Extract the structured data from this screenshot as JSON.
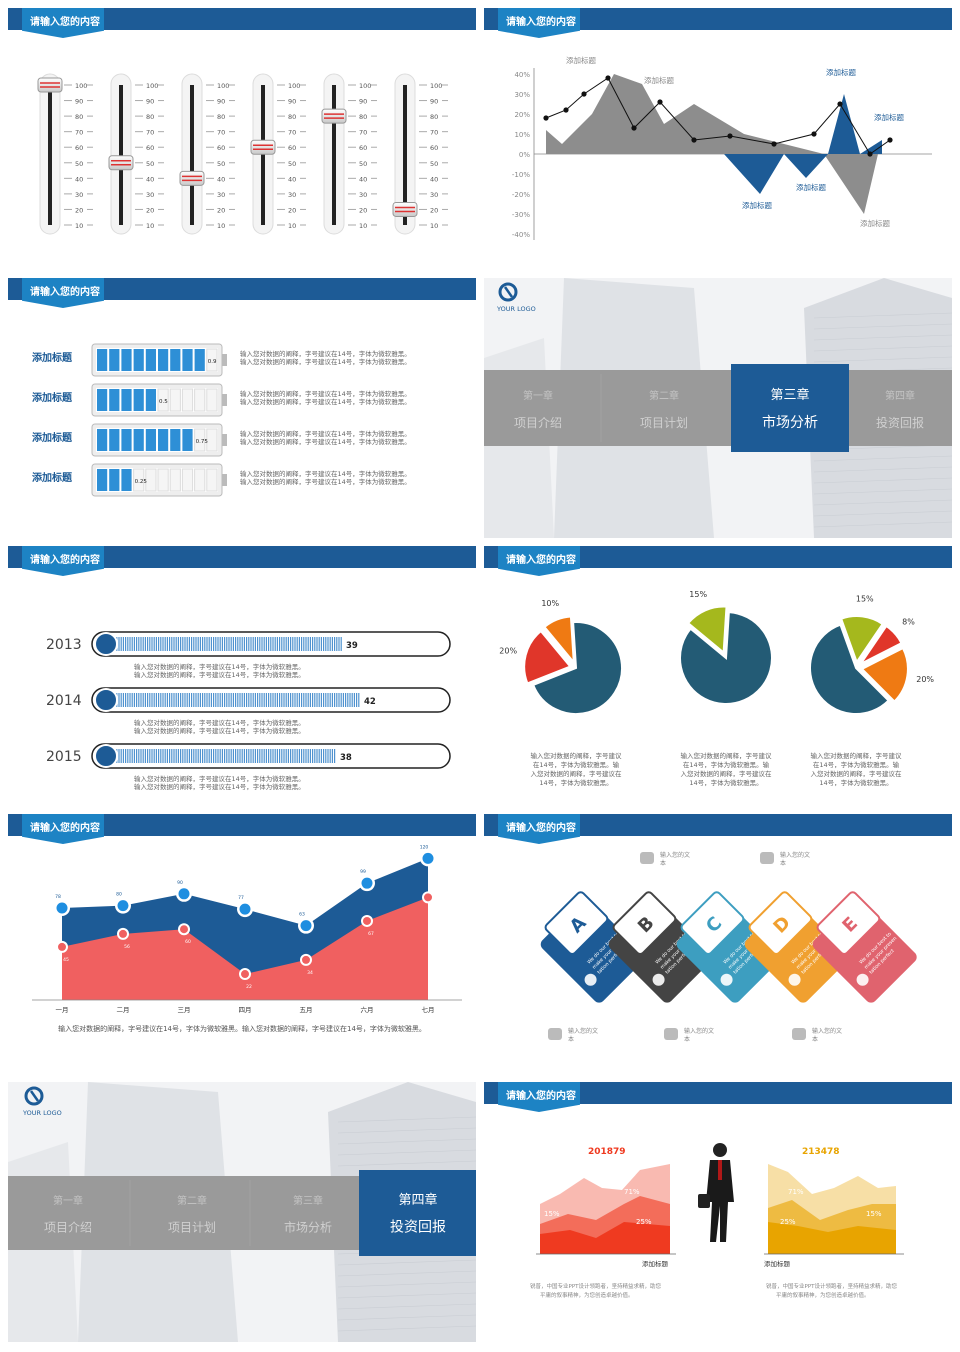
{
  "header_title": "请输入您的内容",
  "sliders": {
    "ticks": [
      "100",
      "90",
      "80",
      "70",
      "60",
      "50",
      "40",
      "30",
      "20",
      "10"
    ],
    "values": [
      100,
      50,
      40,
      60,
      80,
      20
    ]
  },
  "area_pos_neg": {
    "chart_data": {
      "type": "area",
      "y_ticks": [
        "40%",
        "30%",
        "20%",
        "10%",
        "0%",
        "-10%",
        "-20%",
        "-30%",
        "-40%"
      ],
      "ylim": [
        -40,
        40
      ],
      "annotations": [
        "添加标题",
        "添加标题",
        "添加标题",
        "添加标题",
        "添加标题",
        "添加标题",
        "添加标题"
      ],
      "gray_area": [
        12,
        5,
        20,
        40,
        35,
        15,
        25,
        10,
        5,
        0,
        -30
      ],
      "blue_area": [
        0,
        -20,
        0,
        -12,
        0,
        30,
        0,
        7
      ],
      "line": [
        18,
        22,
        30,
        38,
        13,
        26,
        7,
        9,
        5,
        10,
        25,
        0,
        7
      ]
    }
  },
  "batteries": {
    "items": [
      {
        "label": "添加标题",
        "value": 0.9,
        "value_text": "0.9"
      },
      {
        "label": "添加标题",
        "value": 0.5,
        "value_text": "0.5"
      },
      {
        "label": "添加标题",
        "value": 0.75,
        "value_text": "0.75"
      },
      {
        "label": "添加标题",
        "value": 0.25,
        "value_text": "0.25"
      }
    ],
    "desc_line": "输入您对数据的阐释，字号建议在14号，字体为微软雅黑。"
  },
  "chapter3": {
    "logo": "YOUR LOGO",
    "tabs": [
      {
        "num": "第一章",
        "title": "项目介绍"
      },
      {
        "num": "第二章",
        "title": "项目计划"
      },
      {
        "num": "第三章",
        "title": "市场分析"
      },
      {
        "num": "第四章",
        "title": "投资回报"
      }
    ]
  },
  "progress": {
    "items": [
      {
        "year": "2013",
        "value": 39,
        "value_text": "39"
      },
      {
        "year": "2014",
        "value": 42,
        "value_text": "42"
      },
      {
        "year": "2015",
        "value": 38,
        "value_text": "38"
      }
    ],
    "desc_line": "输入您对数据的阐释，字号建议在14号，字体为微软雅黑。"
  },
  "pies": {
    "chart_data": [
      {
        "type": "pie",
        "slices": [
          {
            "label": "20%",
            "value": 20,
            "color": "#e0362a"
          },
          {
            "label": "10%",
            "value": 10,
            "color": "#ef7a13"
          },
          {
            "label": "",
            "value": 70,
            "color": "#235b75"
          }
        ]
      },
      {
        "type": "pie",
        "slices": [
          {
            "label": "15%",
            "value": 15,
            "color": "#a5b81d"
          },
          {
            "label": "",
            "value": 85,
            "color": "#235b75"
          }
        ]
      },
      {
        "type": "pie",
        "slices": [
          {
            "label": "15%",
            "value": 15,
            "color": "#a5b81d"
          },
          {
            "label": "8%",
            "value": 8,
            "color": "#e0362a"
          },
          {
            "label": "20%",
            "value": 20,
            "color": "#ef7a13"
          },
          {
            "label": "",
            "value": 57,
            "color": "#235b75"
          }
        ]
      }
    ],
    "desc": "输入您对数据的阐释，字号建议在14号，字体为微软雅黑。输入您对数据的阐释，字号建议在14号，字体为微软雅黑。"
  },
  "area_months": {
    "chart_data": {
      "type": "area",
      "categories": [
        "一月",
        "二月",
        "三月",
        "四月",
        "五月",
        "六月",
        "七月"
      ],
      "series": [
        {
          "values": [
            78,
            80,
            90,
            77,
            63,
            99,
            120
          ],
          "color": "#1d5b96"
        },
        {
          "values": [
            45,
            56,
            60,
            22,
            34,
            67,
            87
          ],
          "color": "#f06060"
        }
      ]
    },
    "desc": "输入您对数据的阐释，字号建议在14号，字体为微软雅黑。输入您对数据的阐释，字号建议在14号，字体为微软雅黑。"
  },
  "cards": {
    "letters": [
      "A",
      "B",
      "C",
      "D",
      "E"
    ],
    "colors": [
      "#1d5b96",
      "#444444",
      "#3d9ec0",
      "#f0a030",
      "#e0636e"
    ],
    "card_text": "We do our best to make your presentation perfect",
    "labels": [
      "输入您的文本",
      "输入您的文本",
      "输入您的文本",
      "输入您的文本",
      "输入您的文本"
    ]
  },
  "chapter4": {
    "logo": "YOUR LOGO",
    "tabs": [
      {
        "num": "第一章",
        "title": "项目介绍"
      },
      {
        "num": "第二章",
        "title": "项目计划"
      },
      {
        "num": "第三章",
        "title": "市场分析"
      },
      {
        "num": "第四章",
        "title": "投资回报"
      }
    ]
  },
  "dual_area": {
    "left": {
      "number": "201879",
      "title": "添加标题",
      "pcts": [
        "71%",
        "25%",
        "15%"
      ],
      "color": "#ef3a20"
    },
    "right": {
      "number": "213478",
      "title": "添加标题",
      "pcts": [
        "71%",
        "25%",
        "15%"
      ],
      "color": "#e8a400"
    },
    "desc": "锐普，中国专业PPT设计领跑者，坚持精益求精，助您平庸的叙事精神，为您创造卓越价值。"
  }
}
